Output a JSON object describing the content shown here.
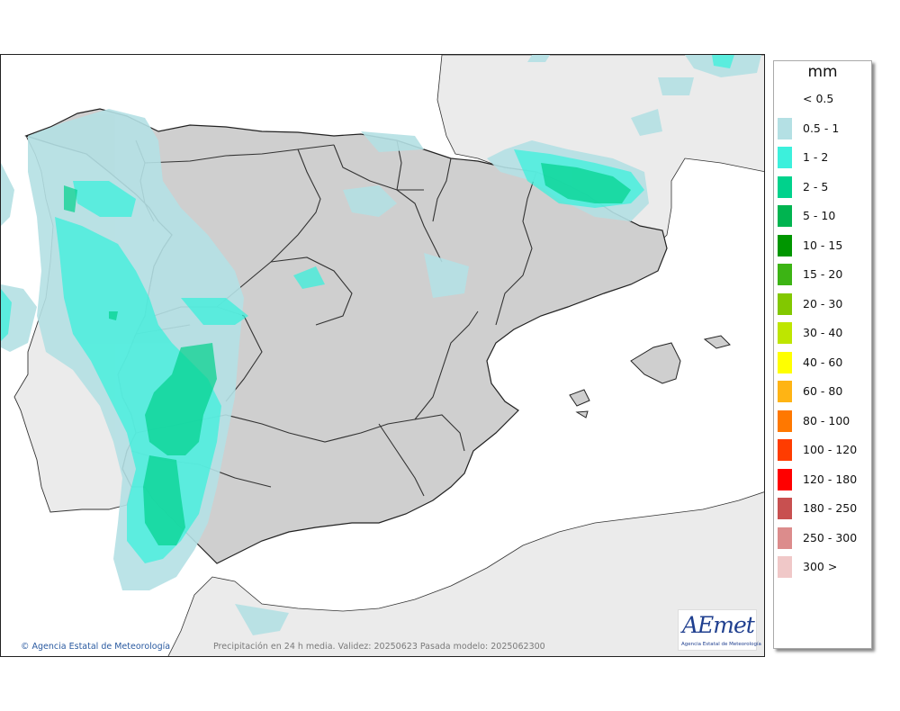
{
  "map": {
    "credit": "Agencia Estatal de Meteorología",
    "caption": "Precipitación en 24 h media. Validez: 20250623 Pasada modelo: 2025062300",
    "logo_text": "AEmet",
    "logo_subtitle": "Agencia Estatal de Meteorología",
    "colors": {
      "sea": "#ffffff",
      "land_other": "#ebebeb",
      "land_spain": "#cfcfcf",
      "borders": "#333333"
    }
  },
  "legend": {
    "title": "mm",
    "items": [
      {
        "label": "< 0.5",
        "color": "#ffffff"
      },
      {
        "label": "0.5 - 1",
        "color": "#b4e0e4"
      },
      {
        "label": "1 - 2",
        "color": "#3cf0dc"
      },
      {
        "label": "2 - 5",
        "color": "#00d28c"
      },
      {
        "label": "5 - 10",
        "color": "#00b450"
      },
      {
        "label": "10 - 15",
        "color": "#009600"
      },
      {
        "label": "15 - 20",
        "color": "#3cb414"
      },
      {
        "label": "20 - 30",
        "color": "#82c800"
      },
      {
        "label": "30 - 40",
        "color": "#bee600"
      },
      {
        "label": "40 - 60",
        "color": "#ffff00"
      },
      {
        "label": "60 - 80",
        "color": "#ffb414"
      },
      {
        "label": "80 - 100",
        "color": "#ff7800"
      },
      {
        "label": "100 - 120",
        "color": "#ff3c00"
      },
      {
        "label": "120 - 180",
        "color": "#ff0000"
      },
      {
        "label": "180 - 250",
        "color": "#c85050"
      },
      {
        "label": "250 - 300",
        "color": "#dc8c8c"
      },
      {
        "label": "300 >",
        "color": "#f0c8c8"
      }
    ]
  }
}
